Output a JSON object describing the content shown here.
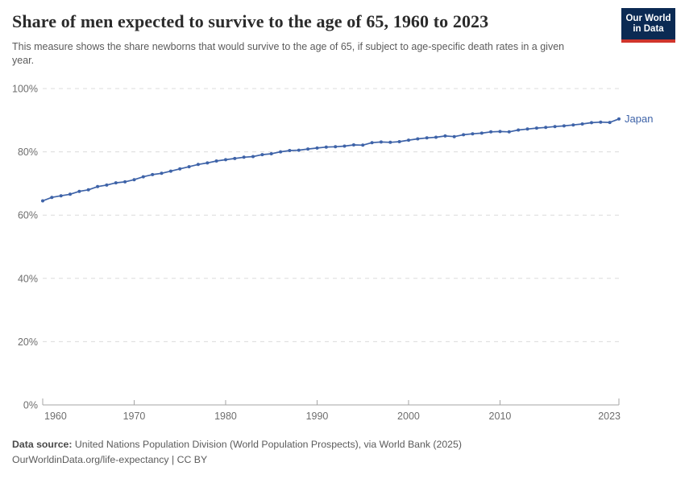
{
  "header": {
    "title": "Share of men expected to survive to the age of 65, 1960 to 2023",
    "subtitle": "This measure shows the share newborns that would survive to the age of 65, if subject to age-specific death rates in a given year.",
    "logo": {
      "line1": "Our World",
      "line2": "in Data"
    }
  },
  "chart_data": {
    "type": "line",
    "title": "Share of men expected to survive to the age of 65, 1960 to 2023",
    "xlabel": "",
    "ylabel": "",
    "x_range": [
      1960,
      2023
    ],
    "ylim": [
      0,
      100
    ],
    "grid": "horizontal-dashed",
    "legend_position": "end-of-line",
    "yticks": [
      {
        "value": 0,
        "label": "0%"
      },
      {
        "value": 20,
        "label": "20%"
      },
      {
        "value": 40,
        "label": "40%"
      },
      {
        "value": 60,
        "label": "60%"
      },
      {
        "value": 80,
        "label": "80%"
      },
      {
        "value": 100,
        "label": "100%"
      }
    ],
    "xticks": [
      {
        "value": 1960,
        "label": "1960"
      },
      {
        "value": 1970,
        "label": "1970"
      },
      {
        "value": 1980,
        "label": "1980"
      },
      {
        "value": 1990,
        "label": "1990"
      },
      {
        "value": 2000,
        "label": "2000"
      },
      {
        "value": 2010,
        "label": "2010"
      },
      {
        "value": 2023,
        "label": "2023"
      }
    ],
    "series": [
      {
        "name": "Japan",
        "color": "#3e63a8",
        "x": [
          1960,
          1961,
          1962,
          1963,
          1964,
          1965,
          1966,
          1967,
          1968,
          1969,
          1970,
          1971,
          1972,
          1973,
          1974,
          1975,
          1976,
          1977,
          1978,
          1979,
          1980,
          1981,
          1982,
          1983,
          1984,
          1985,
          1986,
          1987,
          1988,
          1989,
          1990,
          1991,
          1992,
          1993,
          1994,
          1995,
          1996,
          1997,
          1998,
          1999,
          2000,
          2001,
          2002,
          2003,
          2004,
          2005,
          2006,
          2007,
          2008,
          2009,
          2010,
          2011,
          2012,
          2013,
          2014,
          2015,
          2016,
          2017,
          2018,
          2019,
          2020,
          2021,
          2022,
          2023
        ],
        "values": [
          64.5,
          65.6,
          66.1,
          66.6,
          67.5,
          68.0,
          69.0,
          69.5,
          70.2,
          70.5,
          71.2,
          72.1,
          72.8,
          73.2,
          73.9,
          74.6,
          75.3,
          76.0,
          76.5,
          77.1,
          77.5,
          77.9,
          78.3,
          78.5,
          79.1,
          79.4,
          80.0,
          80.4,
          80.5,
          80.9,
          81.2,
          81.5,
          81.6,
          81.8,
          82.2,
          82.1,
          82.9,
          83.1,
          83.0,
          83.2,
          83.7,
          84.1,
          84.4,
          84.6,
          85.0,
          84.8,
          85.4,
          85.7,
          85.9,
          86.3,
          86.4,
          86.3,
          86.9,
          87.2,
          87.5,
          87.7,
          88.0,
          88.2,
          88.5,
          88.8,
          89.2,
          89.4,
          89.3,
          90.4
        ]
      }
    ]
  },
  "footer": {
    "source_label": "Data source:",
    "source_text": " United Nations Population Division (World Population Prospects), via World Bank (2025)",
    "note_text": "OurWorldinData.org/life-expectancy | CC BY"
  },
  "colors": {
    "series_blue": "#3e63a8",
    "logo_bg": "#0b2a53",
    "logo_stripe": "#d0352c",
    "gridline": "#dcdcdc",
    "axis": "#a5a5a5",
    "tick_text": "#6e6e6e",
    "title_text": "#2b2b2b",
    "subtitle_text": "#5b5b5b"
  }
}
